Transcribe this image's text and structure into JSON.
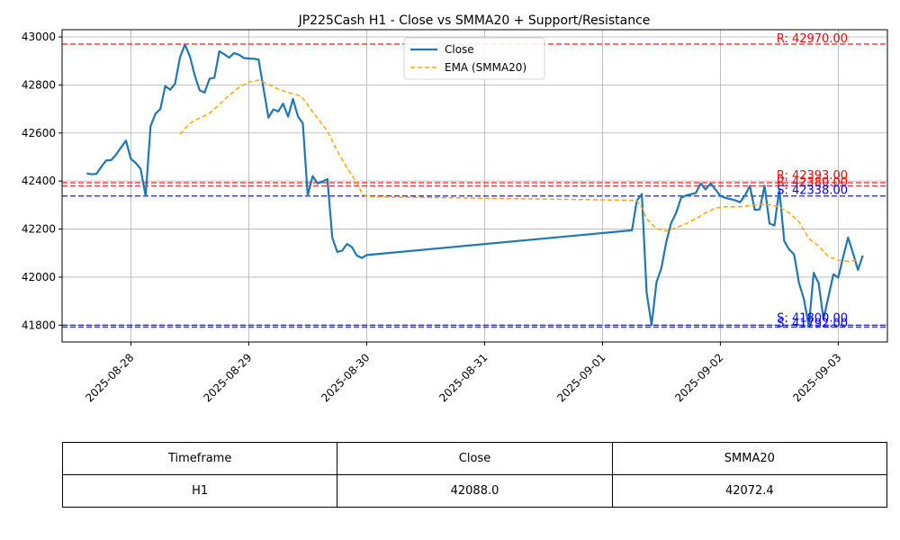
{
  "chart_data": {
    "type": "line",
    "title": "JP225Cash H1 - Close vs SMMA20 + Support/Resistance",
    "xlabel": "",
    "ylabel": "",
    "x_ticks": [
      "2025-08-28",
      "2025-08-29",
      "2025-08-30",
      "2025-08-31",
      "2025-09-01",
      "2025-09-02",
      "2025-09-03"
    ],
    "y_ticks": [
      41800,
      42000,
      42200,
      42400,
      42600,
      42800,
      43000
    ],
    "ylim": [
      41730,
      43030
    ],
    "xlim": [
      "2025-08-27T10:00",
      "2025-09-03T10:00"
    ],
    "grid": true,
    "legend_position": "top-center",
    "series": [
      {
        "name": "Close",
        "color": "#1f77b4",
        "style": "solid",
        "points": [
          [
            "2025-08-27T15:00",
            42432
          ],
          [
            "2025-08-27T16:00",
            42428
          ],
          [
            "2025-08-27T17:00",
            42430
          ],
          [
            "2025-08-27T18:00",
            42460
          ],
          [
            "2025-08-27T19:00",
            42486
          ],
          [
            "2025-08-27T20:00",
            42487
          ],
          [
            "2025-08-27T21:00",
            42510
          ],
          [
            "2025-08-27T22:00",
            42540
          ],
          [
            "2025-08-27T23:00",
            42568
          ],
          [
            "2025-08-28T00:00",
            42492
          ],
          [
            "2025-08-28T01:00",
            42475
          ],
          [
            "2025-08-28T02:00",
            42450
          ],
          [
            "2025-08-28T03:00",
            42338
          ],
          [
            "2025-08-28T04:00",
            42628
          ],
          [
            "2025-08-28T05:00",
            42680
          ],
          [
            "2025-08-28T06:00",
            42700
          ],
          [
            "2025-08-28T07:00",
            42795
          ],
          [
            "2025-08-28T08:00",
            42780
          ],
          [
            "2025-08-28T09:00",
            42805
          ],
          [
            "2025-08-28T10:00",
            42915
          ],
          [
            "2025-08-28T11:00",
            42968
          ],
          [
            "2025-08-28T12:00",
            42920
          ],
          [
            "2025-08-28T13:00",
            42840
          ],
          [
            "2025-08-28T14:00",
            42778
          ],
          [
            "2025-08-28T15:00",
            42768
          ],
          [
            "2025-08-28T16:00",
            42826
          ],
          [
            "2025-08-28T17:00",
            42830
          ],
          [
            "2025-08-28T18:00",
            42940
          ],
          [
            "2025-08-28T19:00",
            42928
          ],
          [
            "2025-08-28T20:00",
            42914
          ],
          [
            "2025-08-28T21:00",
            42933
          ],
          [
            "2025-08-28T22:00",
            42926
          ],
          [
            "2025-08-28T23:00",
            42912
          ],
          [
            "2025-08-29T00:00",
            42910
          ],
          [
            "2025-08-29T01:00",
            42909
          ],
          [
            "2025-08-29T02:00",
            42906
          ],
          [
            "2025-08-29T03:00",
            42785
          ],
          [
            "2025-08-29T04:00",
            42664
          ],
          [
            "2025-08-29T05:00",
            42698
          ],
          [
            "2025-08-29T06:00",
            42690
          ],
          [
            "2025-08-29T07:00",
            42722
          ],
          [
            "2025-08-29T08:00",
            42668
          ],
          [
            "2025-08-29T09:00",
            42742
          ],
          [
            "2025-08-29T10:00",
            42670
          ],
          [
            "2025-08-29T11:00",
            42640
          ],
          [
            "2025-08-29T12:00",
            42340
          ],
          [
            "2025-08-29T13:00",
            42421
          ],
          [
            "2025-08-29T14:00",
            42390
          ],
          [
            "2025-08-29T15:00",
            42398
          ],
          [
            "2025-08-29T16:00",
            42408
          ],
          [
            "2025-08-29T17:00",
            42165
          ],
          [
            "2025-08-29T18:00",
            42105
          ],
          [
            "2025-08-29T19:00",
            42110
          ],
          [
            "2025-08-29T20:00",
            42138
          ],
          [
            "2025-08-29T21:00",
            42125
          ],
          [
            "2025-08-29T22:00",
            42090
          ],
          [
            "2025-08-29T23:00",
            42080
          ],
          [
            "2025-08-30T00:00",
            42092
          ],
          [
            "2025-09-01T06:00",
            42195
          ],
          [
            "2025-09-01T07:00",
            42318
          ],
          [
            "2025-09-01T08:00",
            42346
          ],
          [
            "2025-09-01T09:00",
            41935
          ],
          [
            "2025-09-01T10:00",
            41800
          ],
          [
            "2025-09-01T11:00",
            41980
          ],
          [
            "2025-09-01T12:00",
            42038
          ],
          [
            "2025-09-01T13:00",
            42148
          ],
          [
            "2025-09-01T14:00",
            42226
          ],
          [
            "2025-09-01T15:00",
            42268
          ],
          [
            "2025-09-01T16:00",
            42330
          ],
          [
            "2025-09-01T17:00",
            42340
          ],
          [
            "2025-09-01T18:00",
            42345
          ],
          [
            "2025-09-01T19:00",
            42350
          ],
          [
            "2025-09-01T20:00",
            42390
          ],
          [
            "2025-09-01T21:00",
            42365
          ],
          [
            "2025-09-01T22:00",
            42390
          ],
          [
            "2025-09-01T23:00",
            42365
          ],
          [
            "2025-09-02T00:00",
            42338
          ],
          [
            "2025-09-02T01:00",
            42330
          ],
          [
            "2025-09-02T02:00",
            42325
          ],
          [
            "2025-09-02T03:00",
            42320
          ],
          [
            "2025-09-02T04:00",
            42312
          ],
          [
            "2025-09-02T05:00",
            42340
          ],
          [
            "2025-09-02T06:00",
            42380
          ],
          [
            "2025-09-02T07:00",
            42280
          ],
          [
            "2025-09-02T08:00",
            42282
          ],
          [
            "2025-09-02T09:00",
            42380
          ],
          [
            "2025-09-02T10:00",
            42223
          ],
          [
            "2025-09-02T11:00",
            42215
          ],
          [
            "2025-09-02T12:00",
            42365
          ],
          [
            "2025-09-02T13:00",
            42150
          ],
          [
            "2025-09-02T14:00",
            42115
          ],
          [
            "2025-09-02T15:00",
            42095
          ],
          [
            "2025-09-02T16:00",
            41975
          ],
          [
            "2025-09-02T17:00",
            41910
          ],
          [
            "2025-09-02T18:00",
            41795
          ],
          [
            "2025-09-02T19:00",
            42018
          ],
          [
            "2025-09-02T20:00",
            41975
          ],
          [
            "2025-09-02T21:00",
            41825
          ],
          [
            "2025-09-02T22:00",
            41918
          ],
          [
            "2025-09-02T23:00",
            42012
          ],
          [
            "2025-09-03T00:00",
            41998
          ],
          [
            "2025-09-03T01:00",
            42085
          ],
          [
            "2025-09-03T02:00",
            42165
          ],
          [
            "2025-09-03T03:00",
            42100
          ],
          [
            "2025-09-03T04:00",
            42030
          ],
          [
            "2025-09-03T05:00",
            42090
          ]
        ]
      },
      {
        "name": "EMA (SMMA20)",
        "color": "#ffa500",
        "style": "dashed",
        "points": [
          [
            "2025-08-28T10:00",
            42595
          ],
          [
            "2025-08-28T12:00",
            42640
          ],
          [
            "2025-08-28T14:00",
            42662
          ],
          [
            "2025-08-28T16:00",
            42682
          ],
          [
            "2025-08-28T18:00",
            42718
          ],
          [
            "2025-08-28T20:00",
            42757
          ],
          [
            "2025-08-28T22:00",
            42790
          ],
          [
            "2025-08-29T00:00",
            42812
          ],
          [
            "2025-08-29T02:00",
            42820
          ],
          [
            "2025-08-29T04:00",
            42803
          ],
          [
            "2025-08-29T06:00",
            42782
          ],
          [
            "2025-08-29T08:00",
            42768
          ],
          [
            "2025-08-29T10:00",
            42758
          ],
          [
            "2025-08-29T11:00",
            42745
          ],
          [
            "2025-08-29T13:00",
            42688
          ],
          [
            "2025-08-29T15:00",
            42635
          ],
          [
            "2025-08-29T16:00",
            42608
          ],
          [
            "2025-08-29T18:00",
            42525
          ],
          [
            "2025-08-29T20:00",
            42455
          ],
          [
            "2025-08-29T22:00",
            42393
          ],
          [
            "2025-08-29T23:00",
            42350
          ],
          [
            "2025-08-30T00:00",
            42335
          ],
          [
            "2025-09-01T06:00",
            42320
          ],
          [
            "2025-09-01T07:00",
            42318
          ],
          [
            "2025-09-01T08:00",
            42290
          ],
          [
            "2025-09-01T09:00",
            42242
          ],
          [
            "2025-09-01T11:00",
            42202
          ],
          [
            "2025-09-01T13:00",
            42192
          ],
          [
            "2025-09-01T15:00",
            42206
          ],
          [
            "2025-09-01T17:00",
            42222
          ],
          [
            "2025-09-01T19:00",
            42243
          ],
          [
            "2025-09-01T21:00",
            42268
          ],
          [
            "2025-09-01T23:00",
            42288
          ],
          [
            "2025-09-02T01:00",
            42293
          ],
          [
            "2025-09-02T04:00",
            42293
          ],
          [
            "2025-09-02T06:00",
            42298
          ],
          [
            "2025-09-02T08:00",
            42302
          ],
          [
            "2025-09-02T10:00",
            42302
          ],
          [
            "2025-09-02T12:00",
            42292
          ],
          [
            "2025-09-02T14:00",
            42268
          ],
          [
            "2025-09-02T16:00",
            42230
          ],
          [
            "2025-09-02T18:00",
            42160
          ],
          [
            "2025-09-02T20:00",
            42130
          ],
          [
            "2025-09-02T22:00",
            42085
          ],
          [
            "2025-09-03T00:00",
            42070
          ],
          [
            "2025-09-03T02:00",
            42066
          ],
          [
            "2025-09-03T04:00",
            42072
          ]
        ]
      }
    ],
    "levels": [
      {
        "kind": "resistance",
        "value": 42970.0,
        "label": "R: 42970.00",
        "color": "#ff0000",
        "label_dy": 0
      },
      {
        "kind": "resistance",
        "value": 42393.0,
        "label": "R: 42393.00",
        "color": "#ff0000",
        "label_dy": -2
      },
      {
        "kind": "resistance",
        "value": 42380.0,
        "label": "R: 42380.00",
        "color": "#ff0000",
        "label_dy": 2
      },
      {
        "kind": "support",
        "value": 42338.0,
        "label": "S: 42338.00",
        "color": "#0000ff",
        "label_dy": 0
      },
      {
        "kind": "support",
        "value": 41800.0,
        "label": "S: 41800.00",
        "color": "#0000ff",
        "label_dy": -2
      },
      {
        "kind": "support",
        "value": 41792.0,
        "label": "S: 41792.00",
        "color": "#0000ff",
        "label_dy": 2
      }
    ]
  },
  "table": {
    "headers": [
      "Timeframe",
      "Close",
      "SMMA20"
    ],
    "rows": [
      [
        "H1",
        "42088.0",
        "42072.4"
      ]
    ]
  }
}
